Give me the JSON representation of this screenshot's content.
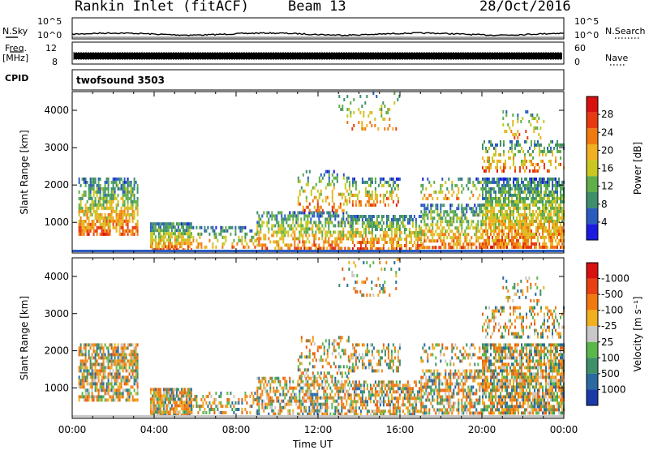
{
  "header": {
    "station": "Rankin Inlet (fitACF)",
    "beam": "Beam 13",
    "date": "28/Oct/2016"
  },
  "top_panels": {
    "nsky_label": "N.Sky",
    "nsearch_label": "N.Search",
    "nsky_tick_top": "10^5",
    "nsky_tick_bottom": "10^0",
    "freq_label": "Freq.",
    "freq_unit": "[MHz]",
    "freq_tick_top": "12",
    "freq_tick_bottom": "8",
    "nave_label": "Nave",
    "nave_tick_top": "60",
    "nave_tick_bottom": "0",
    "cpid_label": "CPID",
    "cpid_value": "twofsound 3503"
  },
  "chart_data": [
    {
      "type": "heatmap",
      "panel": "power",
      "ylabel": "Slant Range [km]",
      "ylim": [
        180,
        4500
      ],
      "yticks": [
        1000,
        2000,
        3000,
        4000
      ],
      "xlim_hours": [
        0,
        24
      ],
      "colorbar_label": "Power [dB]",
      "colorbar_ticks": [
        4,
        8,
        12,
        16,
        20,
        24,
        28
      ],
      "colorbar_colors": [
        "#1a1ae0",
        "#2a5cc0",
        "#3e8f6a",
        "#5fae4a",
        "#c8c820",
        "#f0b020",
        "#f07a10",
        "#e83a10",
        "#d81010"
      ]
    },
    {
      "type": "heatmap",
      "panel": "velocity",
      "ylabel": "Slant Range [km]",
      "ylim": [
        180,
        4500
      ],
      "yticks": [
        1000,
        2000,
        3000,
        4000
      ],
      "xlim_hours": [
        0,
        24
      ],
      "xlabel": "Time UT",
      "xticks": [
        "00:00",
        "04:00",
        "08:00",
        "12:00",
        "16:00",
        "20:00",
        "00:00"
      ],
      "colorbar_label": "Velocity [m s⁻¹]",
      "colorbar_ticks": [
        "1000",
        "500",
        "100",
        "25",
        "-25",
        "-100",
        "-500",
        "-1000"
      ],
      "colorbar_colors": [
        "#1a3aa8",
        "#2a6aa0",
        "#3e8f6a",
        "#5ab84a",
        "#c8c8c8",
        "#f0b020",
        "#f07a10",
        "#e84010",
        "#d81010"
      ]
    }
  ]
}
